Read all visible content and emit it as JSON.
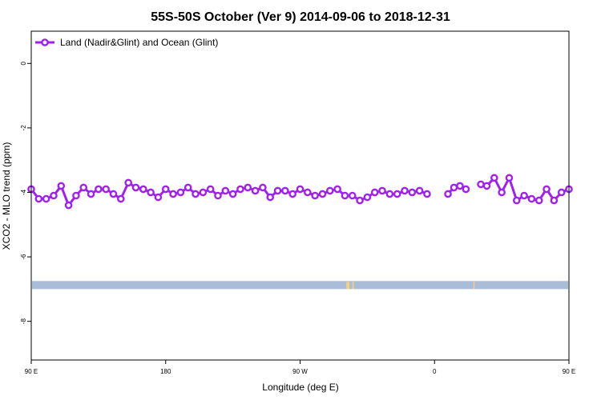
{
  "chart_data": {
    "type": "line",
    "title": "55S-50S October (Ver 9)   2014-09-06 to 2018-12-31",
    "xlabel": "Longitude (deg E)",
    "ylabel": "XCO2 - MLO trend (ppm)",
    "xlim": [
      90,
      450
    ],
    "ylim": [
      -9.2,
      1.0
    ],
    "x_ticks": [
      {
        "value": 90,
        "label": "90 E"
      },
      {
        "value": 180,
        "label": "180"
      },
      {
        "value": 270,
        "label": "90 W"
      },
      {
        "value": 360,
        "label": "0"
      },
      {
        "value": 450,
        "label": "90 E"
      },
      {
        "value": 540,
        "label": "180"
      }
    ],
    "y_ticks": [
      {
        "value": 0,
        "label": "0"
      },
      {
        "value": -2,
        "label": "-2"
      },
      {
        "value": -4,
        "label": "-4"
      },
      {
        "value": -6,
        "label": "-6"
      },
      {
        "value": -8,
        "label": "-8"
      }
    ],
    "legend_position": "top-left",
    "series": [
      {
        "name": "Land (Nadir&Glint) and Ocean (Glint)",
        "color": "#a020f0",
        "points": [
          [
            90,
            -3.9
          ],
          [
            95,
            -4.2
          ],
          [
            100,
            -4.2
          ],
          [
            105,
            -4.1
          ],
          [
            110,
            -3.8
          ],
          [
            115,
            -4.4
          ],
          [
            120,
            -4.1
          ],
          [
            125,
            -3.85
          ],
          [
            130,
            -4.05
          ],
          [
            135,
            -3.9
          ],
          [
            140,
            -3.9
          ],
          [
            145,
            -4.05
          ],
          [
            150,
            -4.2
          ],
          [
            155,
            -3.7
          ],
          [
            160,
            -3.85
          ],
          [
            165,
            -3.9
          ],
          [
            170,
            -4.0
          ],
          [
            175,
            -4.15
          ],
          [
            180,
            -3.9
          ],
          [
            185,
            -4.05
          ],
          [
            190,
            -4.0
          ],
          [
            195,
            -3.85
          ],
          [
            200,
            -4.05
          ],
          [
            205,
            -4.0
          ],
          [
            210,
            -3.9
          ],
          [
            215,
            -4.1
          ],
          [
            220,
            -3.95
          ],
          [
            225,
            -4.05
          ],
          [
            230,
            -3.9
          ],
          [
            235,
            -3.85
          ],
          [
            240,
            -3.95
          ],
          [
            245,
            -3.85
          ],
          [
            250,
            -4.15
          ],
          [
            255,
            -3.95
          ],
          [
            260,
            -3.95
          ],
          [
            265,
            -4.05
          ],
          [
            270,
            -3.9
          ],
          [
            275,
            -4.0
          ],
          [
            280,
            -4.1
          ],
          [
            285,
            -4.05
          ],
          [
            290,
            -3.95
          ],
          [
            295,
            -3.9
          ],
          [
            300,
            -4.1
          ],
          [
            305,
            -4.1
          ],
          [
            310,
            -4.25
          ],
          [
            315,
            -4.15
          ],
          [
            320,
            -4.0
          ],
          [
            325,
            -3.95
          ],
          [
            330,
            -4.05
          ],
          [
            335,
            -4.05
          ],
          [
            340,
            -3.95
          ],
          [
            345,
            -4.0
          ],
          [
            350,
            -3.95
          ],
          [
            355,
            -4.05
          ],
          null,
          [
            369,
            -4.05
          ],
          [
            373,
            -3.85
          ],
          [
            377,
            -3.8
          ],
          [
            381,
            -3.9
          ],
          null,
          [
            391,
            -3.75
          ],
          [
            395,
            -3.8
          ],
          [
            400,
            -3.55
          ],
          [
            405,
            -4.0
          ],
          [
            410,
            -3.55
          ],
          [
            415,
            -4.25
          ],
          [
            420,
            -4.1
          ],
          [
            425,
            -4.2
          ],
          [
            430,
            -4.25
          ],
          [
            435,
            -3.9
          ],
          [
            440,
            -4.25
          ],
          [
            445,
            -4.0
          ],
          [
            450,
            -3.9
          ],
          [
            455,
            -4.2
          ],
          [
            460,
            -4.2
          ],
          [
            465,
            -4.15
          ],
          [
            470,
            -3.8
          ],
          [
            475,
            -4.4
          ],
          [
            480,
            -4.1
          ],
          [
            485,
            -3.85
          ],
          [
            490,
            -4.05
          ],
          [
            495,
            -3.9
          ],
          [
            500,
            -3.9
          ],
          [
            505,
            -4.1
          ],
          [
            510,
            -4.2
          ],
          [
            515,
            -3.7
          ],
          [
            520,
            -3.85
          ],
          [
            525,
            -3.9
          ],
          [
            530,
            -4.0
          ],
          [
            535,
            -4.15
          ]
        ]
      }
    ],
    "land_band": {
      "y_range": [
        -7.0,
        -6.75
      ],
      "ocean_color": "#a9bcd8",
      "land_color": "#f5d27a",
      "land_segments": [
        [
          301,
          303
        ],
        [
          305,
          306
        ],
        [
          386,
          386.5
        ]
      ]
    }
  }
}
